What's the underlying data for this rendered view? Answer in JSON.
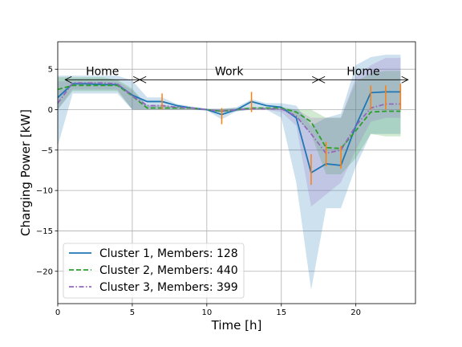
{
  "chart_data": {
    "type": "line",
    "xlabel": "Time [h]",
    "ylabel": "Charging Power [kW]",
    "xlim": [
      0,
      24
    ],
    "ylim": [
      -24,
      8.4
    ],
    "xticks": [
      0,
      5,
      10,
      15,
      20
    ],
    "yticks": [
      5,
      0,
      -5,
      -10,
      -15,
      -20
    ],
    "grid": true,
    "legend_position": "lower-left",
    "x": [
      0,
      1,
      2,
      3,
      4,
      5,
      6,
      7,
      8,
      9,
      10,
      11,
      12,
      13,
      14,
      15,
      16,
      17,
      18,
      19,
      20,
      21,
      22,
      23
    ],
    "series": [
      {
        "name": "Cluster 1, Members: 128",
        "color": "#1f77b4",
        "linestyle": "solid",
        "values": [
          1.5,
          3.2,
          3.2,
          3.1,
          3.1,
          1.8,
          1.0,
          1.0,
          0.5,
          0.2,
          0.0,
          -0.6,
          0.0,
          1.0,
          0.5,
          0.3,
          -1.0,
          -7.8,
          -6.7,
          -6.9,
          -2.0,
          2.1,
          2.2,
          2.2
        ],
        "band_upper": [
          4.2,
          4.2,
          4.2,
          4.2,
          4.2,
          3.6,
          1.5,
          1.5,
          0.7,
          0.4,
          0.1,
          0.1,
          0.3,
          1.3,
          0.8,
          0.8,
          0.5,
          -2.0,
          -1.0,
          -0.5,
          5.5,
          6.5,
          6.8,
          6.8
        ],
        "band_lower": [
          -4.5,
          2.0,
          2.0,
          2.0,
          2.0,
          0.0,
          0.0,
          0.0,
          0.0,
          0.0,
          -0.1,
          -1.2,
          -0.2,
          0.0,
          0.0,
          -1.0,
          -9.0,
          -22.3,
          -12.2,
          -12.2,
          -7.0,
          -3.0,
          -3.0,
          -3.0
        ],
        "errorbars": {
          "color": "#ff7f0e",
          "lower": [
            null,
            null,
            null,
            null,
            null,
            null,
            null,
            0.0,
            null,
            null,
            null,
            -1.8,
            null,
            -0.3,
            null,
            null,
            null,
            -9.3,
            -7.0,
            -7.3,
            null,
            0.0,
            0.0,
            0.0
          ],
          "upper": [
            null,
            null,
            null,
            null,
            null,
            null,
            null,
            2.0,
            null,
            null,
            null,
            0.2,
            null,
            2.2,
            null,
            null,
            null,
            -5.5,
            -4.0,
            -4.5,
            null,
            3.0,
            3.0,
            3.2
          ]
        }
      },
      {
        "name": "Cluster 2, Members: 440",
        "color": "#2ca02c",
        "linestyle": "dashed",
        "values": [
          2.5,
          3.0,
          3.0,
          3.0,
          3.0,
          1.7,
          0.2,
          0.2,
          0.2,
          0.2,
          0.0,
          -0.2,
          0.0,
          0.2,
          0.2,
          0.2,
          -0.3,
          -1.5,
          -4.7,
          -4.8,
          -2.6,
          -0.3,
          -0.2,
          -0.2
        ],
        "band_upper": [
          4.0,
          4.0,
          4.0,
          4.0,
          3.7,
          2.6,
          0.5,
          0.5,
          0.4,
          0.3,
          0.1,
          0.1,
          0.2,
          0.3,
          0.3,
          0.3,
          0.0,
          0.0,
          -1.0,
          -1.0,
          3.5,
          4.5,
          4.8,
          4.8
        ],
        "band_lower": [
          0.0,
          2.3,
          2.3,
          2.3,
          2.3,
          0.0,
          0.0,
          0.0,
          0.0,
          0.0,
          -0.1,
          -0.4,
          -0.2,
          0.0,
          0.0,
          0.0,
          -1.0,
          -3.0,
          -8.0,
          -8.0,
          -6.0,
          -3.0,
          -3.3,
          -3.3
        ]
      },
      {
        "name": "Cluster 3, Members: 399",
        "color": "#9467bd",
        "linestyle": "dashdot",
        "values": [
          0.8,
          3.3,
          3.3,
          3.3,
          3.2,
          1.7,
          0.5,
          0.5,
          0.3,
          0.2,
          0.0,
          -0.2,
          0.0,
          0.1,
          0.1,
          0.1,
          -0.8,
          -3.0,
          -5.4,
          -5.0,
          -2.0,
          0.2,
          0.7,
          0.7
        ],
        "band_upper": [
          3.5,
          3.5,
          3.5,
          3.5,
          3.5,
          2.4,
          0.6,
          0.6,
          0.4,
          0.3,
          0.1,
          0.1,
          0.2,
          0.2,
          0.2,
          0.2,
          0.0,
          -1.0,
          -1.0,
          -1.0,
          4.0,
          5.5,
          6.4,
          6.4
        ],
        "band_lower": [
          0.0,
          2.5,
          2.5,
          2.5,
          2.5,
          0.0,
          0.0,
          0.0,
          0.0,
          0.0,
          -0.1,
          -0.3,
          -0.2,
          0.0,
          0.0,
          -0.3,
          -2.0,
          -12.0,
          -10.5,
          -9.0,
          -5.0,
          -1.5,
          -1.0,
          -1.0
        ]
      }
    ],
    "annotations": [
      {
        "text": "Home",
        "x": 3.0,
        "y": 4.0,
        "arrow_from": 0.5,
        "arrow_to": 5.5,
        "arrow_y": 4.0
      },
      {
        "text": "Work",
        "x": 11.5,
        "y": 4.0,
        "arrow_from": 5.5,
        "arrow_to": 17.5,
        "arrow_y": 4.0
      },
      {
        "text": "Home",
        "x": 20.5,
        "y": 4.0,
        "arrow_from": 17.5,
        "arrow_to": 23.5,
        "arrow_y": 4.0
      }
    ]
  }
}
